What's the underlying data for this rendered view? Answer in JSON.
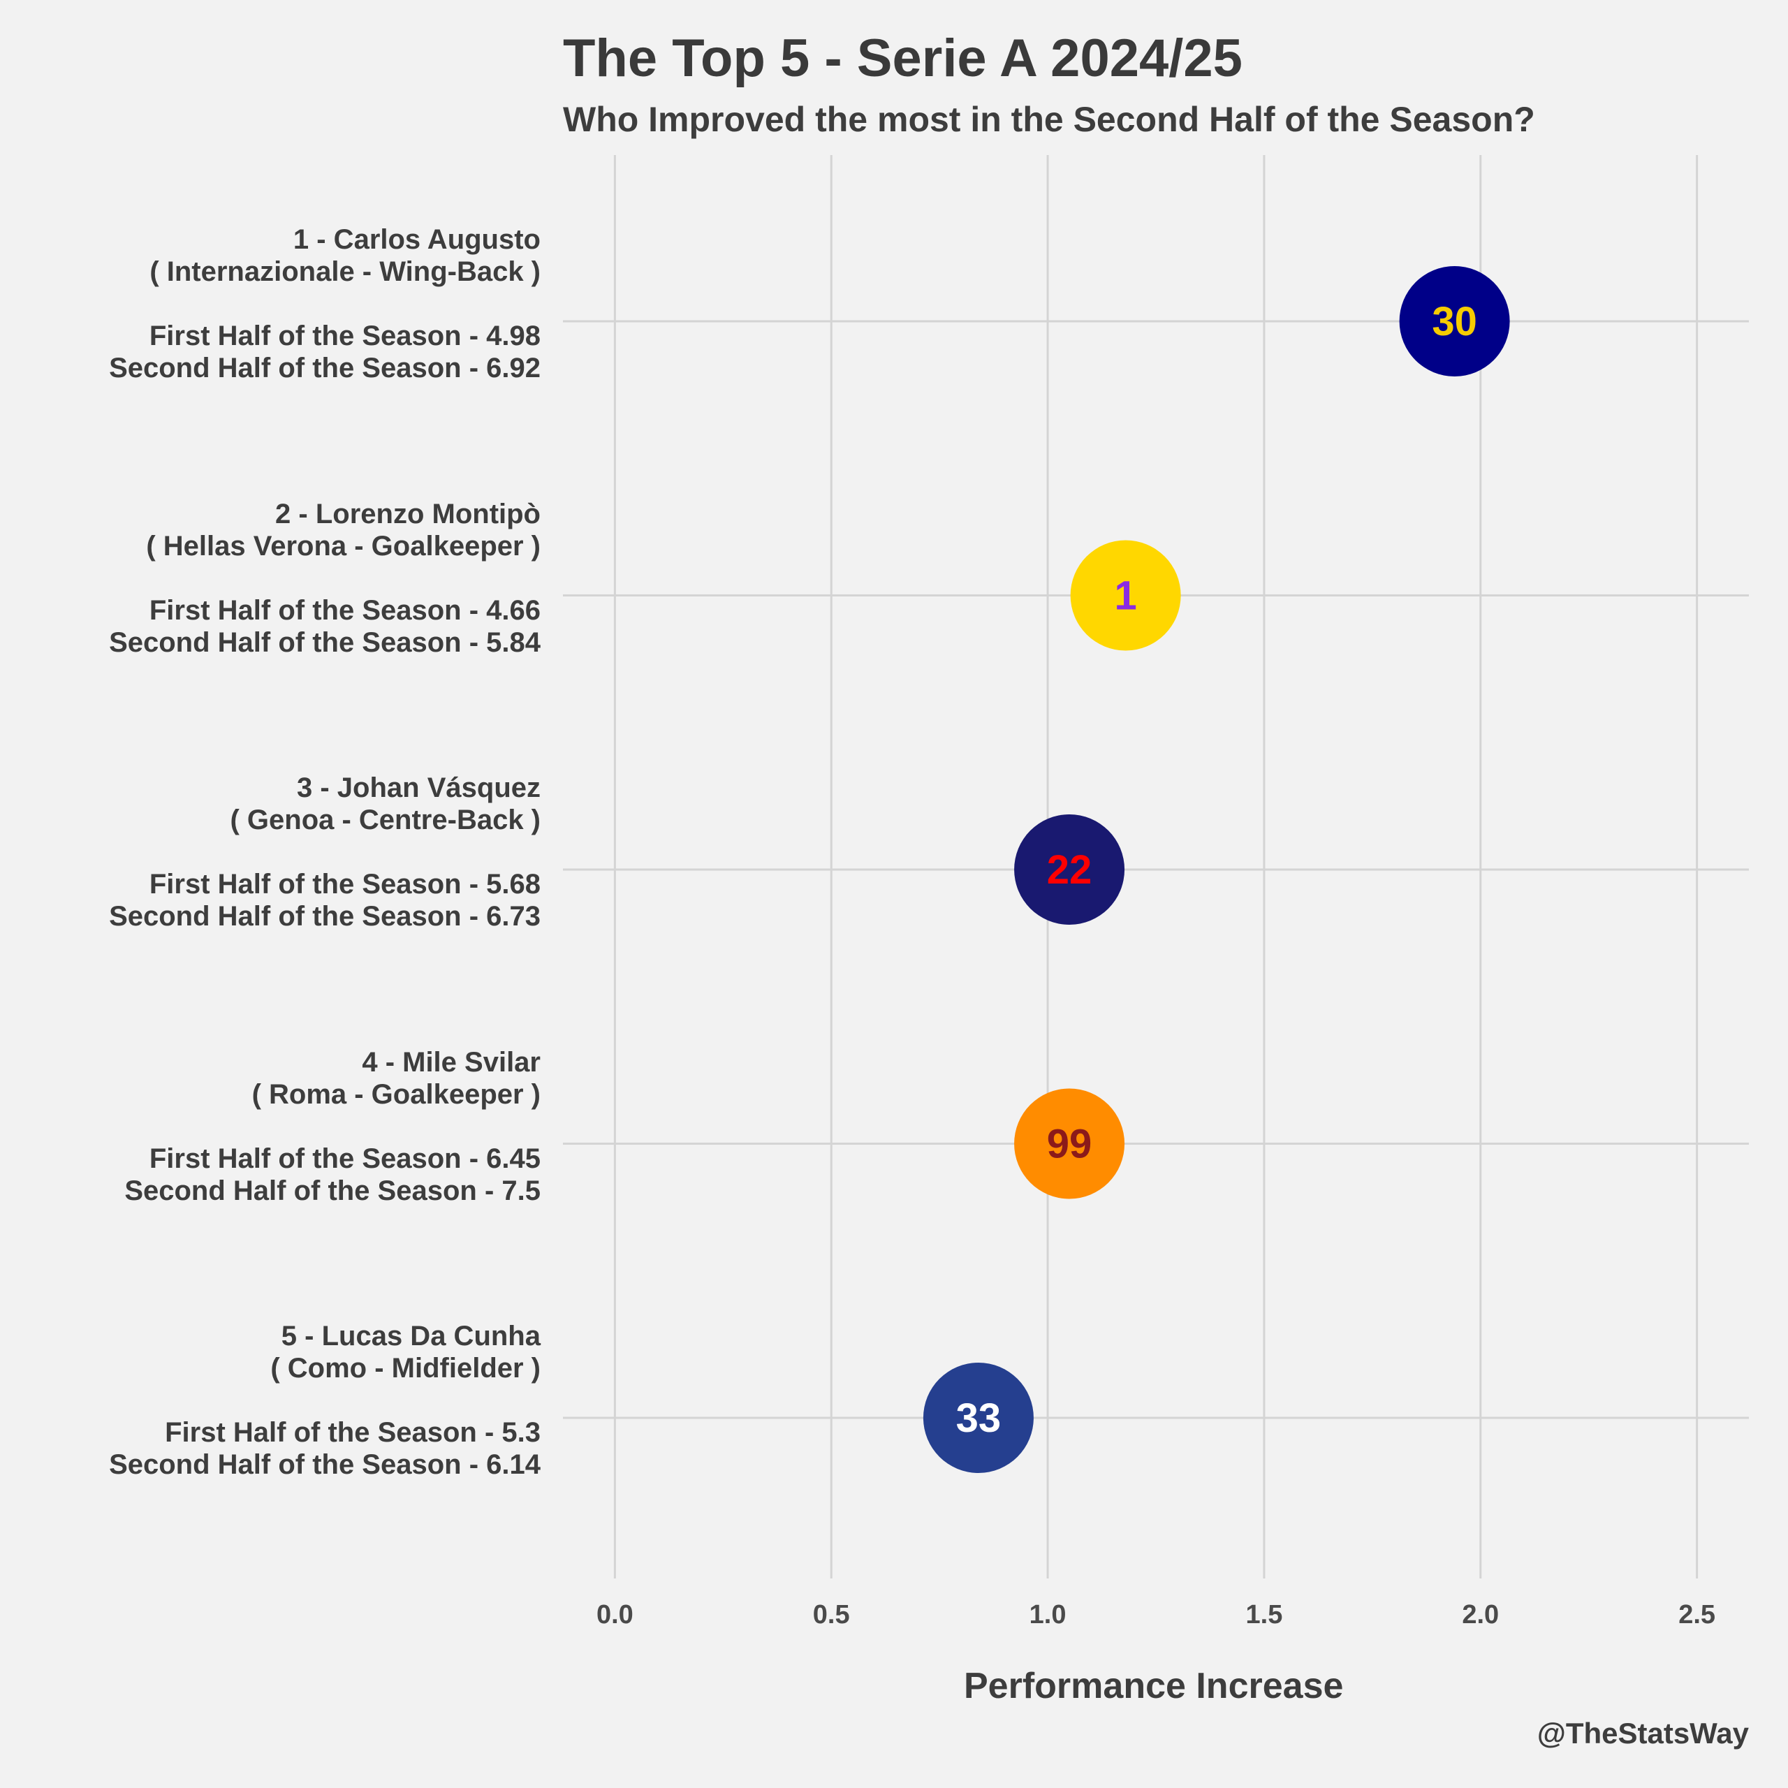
{
  "chart_data": {
    "type": "scatter",
    "title": "The Top 5 - Serie A 2024/25",
    "subtitle": "Who Improved the most in the Second Half of the Season?",
    "xlabel": "Performance Increase",
    "xlim": [
      -0.12,
      2.62
    ],
    "x_ticks": [
      "0.0",
      "0.5",
      "1.0",
      "1.5",
      "2.0",
      "2.5"
    ],
    "x_tick_values": [
      0.0,
      0.5,
      1.0,
      1.5,
      2.0,
      2.5
    ],
    "grid": true,
    "credit": "@TheStatsWay",
    "players": [
      {
        "rank_name": "1 - Carlos Augusto",
        "team_role": "( Internazionale - Wing-Back )",
        "first_half": "First Half of the Season - 4.98",
        "second_half": "Second Half of the Season - 6.92",
        "number": "30",
        "x": 1.94,
        "fill": "#000088",
        "text_color": "#f6cc00"
      },
      {
        "rank_name": "2 - Lorenzo Montipò",
        "team_role": "( Hellas Verona - Goalkeeper )",
        "first_half": "First Half of the Season - 4.66",
        "second_half": "Second Half of the Season - 5.84",
        "number": "1",
        "x": 1.18,
        "fill": "#ffd700",
        "text_color": "#8a2be2"
      },
      {
        "rank_name": "3 - Johan Vásquez",
        "team_role": "( Genoa - Centre-Back )",
        "first_half": "First Half of the Season - 5.68",
        "second_half": "Second Half of the Season - 6.73",
        "number": "22",
        "x": 1.05,
        "fill": "#191970",
        "text_color": "#ff0000"
      },
      {
        "rank_name": "4 - Mile Svilar",
        "team_role": "( Roma - Goalkeeper )",
        "first_half": "First Half of the Season - 6.45",
        "second_half": "Second Half of the Season - 7.5",
        "number": "99",
        "x": 1.05,
        "fill": "#ff8c00",
        "text_color": "#8b1a1a"
      },
      {
        "rank_name": "5 - Lucas Da Cunha",
        "team_role": "( Como - Midfielder )",
        "first_half": "First Half of the Season - 5.3",
        "second_half": "Second Half of the Season - 6.14",
        "number": "33",
        "x": 0.84,
        "fill": "#253f8f",
        "text_color": "#ffffff"
      }
    ]
  }
}
